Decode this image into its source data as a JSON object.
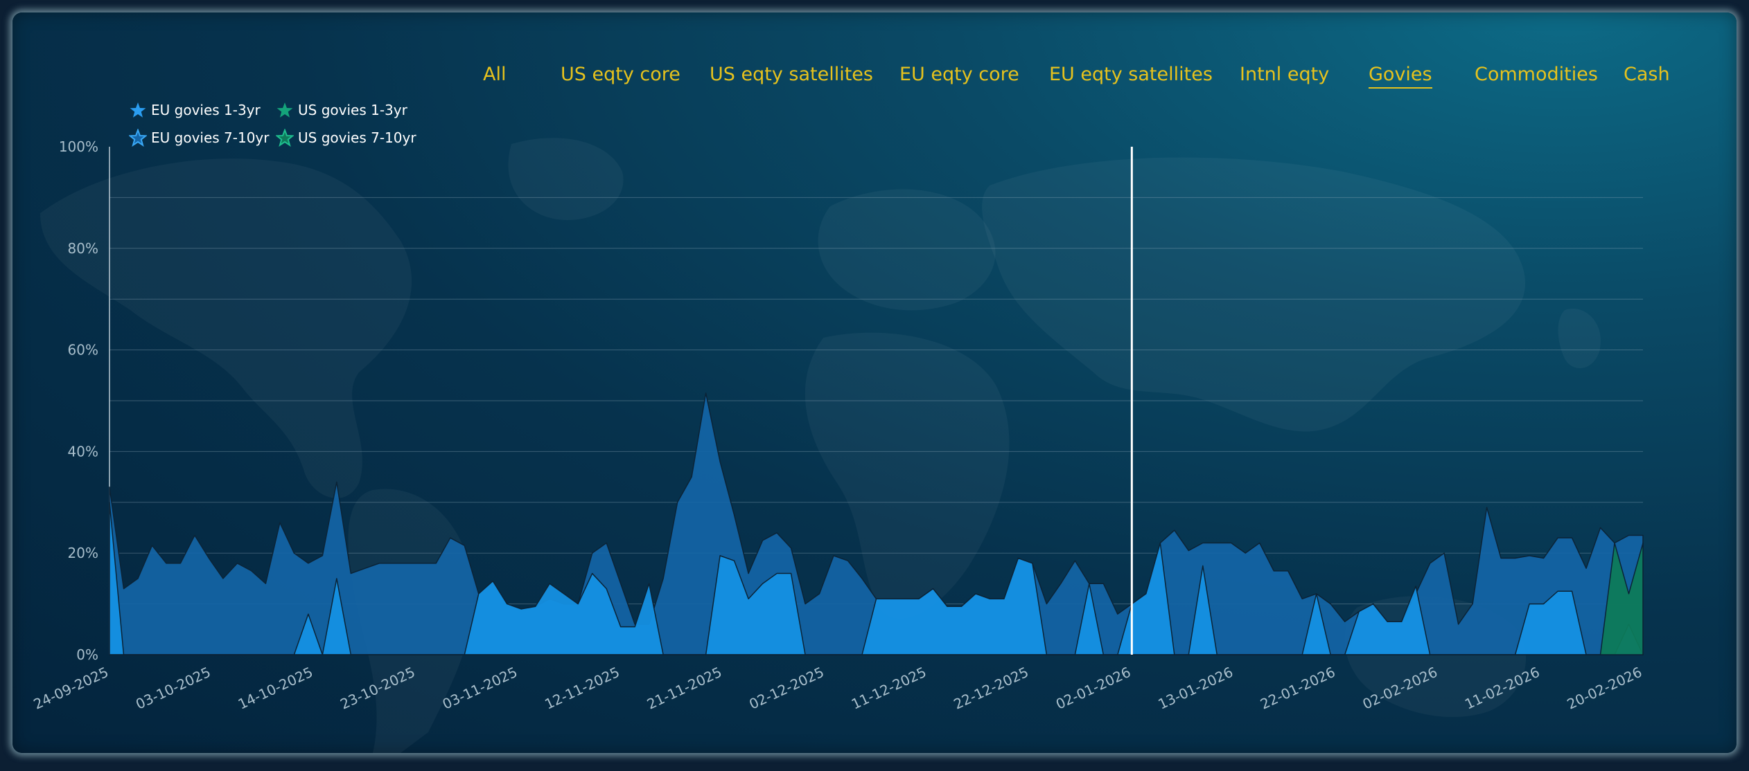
{
  "nav": {
    "items": [
      "All",
      "US eqty core",
      "US eqty satellites",
      "EU eqty core",
      "EU eqty satellites",
      "Intnl eqty",
      "Govies",
      "Commodities",
      "Cash"
    ],
    "active": "Govies"
  },
  "colors": {
    "nav_text": "#e6c21d",
    "eu_1_3": "#1590e3",
    "eu_7_10": "#1466a9",
    "us_1_3": "#13b07f",
    "us_7_10": "#0e7a5a"
  },
  "chart_data": {
    "type": "area",
    "stacked": false,
    "title": "",
    "xlabel": "",
    "ylabel": "",
    "ylim": [
      0,
      100
    ],
    "y_ticks": [
      "0%",
      "20%",
      "40%",
      "60%",
      "80%",
      "100%"
    ],
    "x_ticks": [
      "24-09-2025",
      "03-10-2025",
      "14-10-2025",
      "23-10-2025",
      "03-11-2025",
      "12-11-2025",
      "21-11-2025",
      "02-12-2025",
      "11-12-2025",
      "22-12-2025",
      "02-01-2026",
      "13-01-2026",
      "22-01-2026",
      "02-02-2026",
      "11-02-2026",
      "20-02-2026"
    ],
    "vertical_marker": "02-01-2026",
    "legend_position": "top-left",
    "grid": true,
    "series": [
      {
        "name": "EU govies 7-10yr",
        "color_key": "eu_7_10",
        "values": [
          33,
          13,
          15,
          21.5,
          18,
          18,
          23.5,
          19,
          15,
          18,
          16.5,
          14,
          26,
          20,
          18,
          19.5,
          34,
          16,
          17,
          18,
          18,
          18,
          18,
          18,
          23,
          21.5,
          12,
          14.5,
          10,
          9,
          9.5,
          11,
          10,
          10,
          20,
          22,
          14,
          6,
          6,
          15,
          30,
          35,
          51.5,
          38,
          27.5,
          16,
          22.5,
          24,
          21,
          10,
          12,
          19.5,
          18.5,
          15,
          11,
          11,
          11,
          11,
          13,
          9.5,
          9.5,
          12,
          11,
          11,
          19,
          18,
          10,
          14,
          18.5,
          14,
          14,
          8,
          10,
          12,
          22,
          24.5,
          20.5,
          22,
          22,
          22,
          20,
          22,
          16.5,
          16.5,
          11,
          12,
          10,
          6.5,
          8.5,
          10,
          6.5,
          6.5,
          12,
          18,
          20,
          6,
          10,
          29,
          19,
          19,
          19.5,
          19,
          23,
          23,
          17,
          25,
          22,
          23.5,
          23.5
        ]
      },
      {
        "name": "EU govies 1-3yr",
        "color_key": "eu_1_3",
        "values": [
          30,
          0,
          0,
          0,
          0,
          0,
          0,
          0,
          0,
          0,
          0,
          0,
          0,
          0,
          8,
          0,
          15,
          0,
          0,
          0,
          0,
          0,
          0,
          0,
          0,
          0,
          12,
          14.5,
          10,
          9,
          9.5,
          14,
          12,
          10,
          16,
          13,
          5.5,
          5.5,
          14,
          0,
          0,
          0,
          0,
          19.5,
          18.5,
          11,
          14,
          16,
          16,
          0,
          0,
          0,
          0,
          0,
          11,
          11,
          11,
          11,
          13,
          9.5,
          9.5,
          12,
          11,
          11,
          19,
          18,
          0,
          0,
          0,
          14,
          0,
          0,
          10,
          12,
          22,
          0,
          0,
          17.5,
          0,
          0,
          0,
          0,
          0,
          0,
          0,
          12,
          0,
          0,
          8.5,
          10,
          6.5,
          6.5,
          13.5,
          0,
          0,
          0,
          0,
          0,
          0,
          0,
          10,
          10,
          12.5,
          12.5,
          0,
          0,
          0,
          6,
          0
        ]
      },
      {
        "name": "US govies 7-10yr",
        "color_key": "us_7_10",
        "values": [
          0,
          0,
          0,
          0,
          0,
          0,
          0,
          0,
          0,
          0,
          0,
          0,
          0,
          0,
          0,
          0,
          0,
          0,
          0,
          0,
          0,
          0,
          0,
          0,
          0,
          0,
          0,
          0,
          0,
          0,
          0,
          0,
          0,
          0,
          0,
          0,
          0,
          0,
          0,
          0,
          0,
          0,
          0,
          0,
          0,
          0,
          0,
          0,
          0,
          0,
          0,
          0,
          0,
          0,
          0,
          0,
          0,
          0,
          0,
          0,
          0,
          0,
          0,
          0,
          0,
          0,
          0,
          0,
          0,
          0,
          0,
          0,
          0,
          0,
          0,
          0,
          0,
          0,
          0,
          0,
          0,
          0,
          0,
          0,
          0,
          0,
          0,
          0,
          0,
          0,
          0,
          0,
          0,
          0,
          0,
          0,
          0,
          0,
          0,
          0,
          0,
          0,
          0,
          0,
          0,
          0,
          22,
          12,
          22
        ]
      },
      {
        "name": "US govies 1-3yr",
        "color_key": "us_1_3",
        "values": [
          0,
          0,
          0,
          0,
          0,
          0,
          0,
          0,
          0,
          0,
          0,
          0,
          0,
          0,
          0,
          0,
          0,
          0,
          0,
          0,
          0,
          0,
          0,
          0,
          0,
          0,
          0,
          0,
          0,
          0,
          0,
          0,
          0,
          0,
          0,
          0,
          0,
          0,
          0,
          0,
          0,
          0,
          0,
          0,
          0,
          0,
          0,
          0,
          0,
          0,
          0,
          0,
          0,
          0,
          0,
          0,
          0,
          0,
          0,
          0,
          0,
          0,
          0,
          0,
          0,
          0,
          0,
          0,
          0,
          0,
          0,
          0,
          0,
          0,
          0,
          0,
          0,
          0,
          0,
          0,
          0,
          0,
          0,
          0,
          0,
          0,
          0,
          0,
          0,
          0,
          0,
          0,
          0,
          0,
          0,
          0,
          0,
          0,
          0,
          0,
          0,
          0,
          0,
          0,
          0,
          0,
          0,
          0,
          0
        ]
      }
    ],
    "legend": [
      {
        "name": "EU govies 1-3yr",
        "color_key": "eu_1_3",
        "style": "filled-star"
      },
      {
        "name": "US govies 1-3yr",
        "color_key": "us_1_3",
        "style": "filled-star"
      },
      {
        "name": "EU govies 7-10yr",
        "color_key": "eu_7_10",
        "style": "outline-star"
      },
      {
        "name": "US govies 7-10yr",
        "color_key": "us_7_10",
        "style": "outline-star"
      }
    ]
  }
}
